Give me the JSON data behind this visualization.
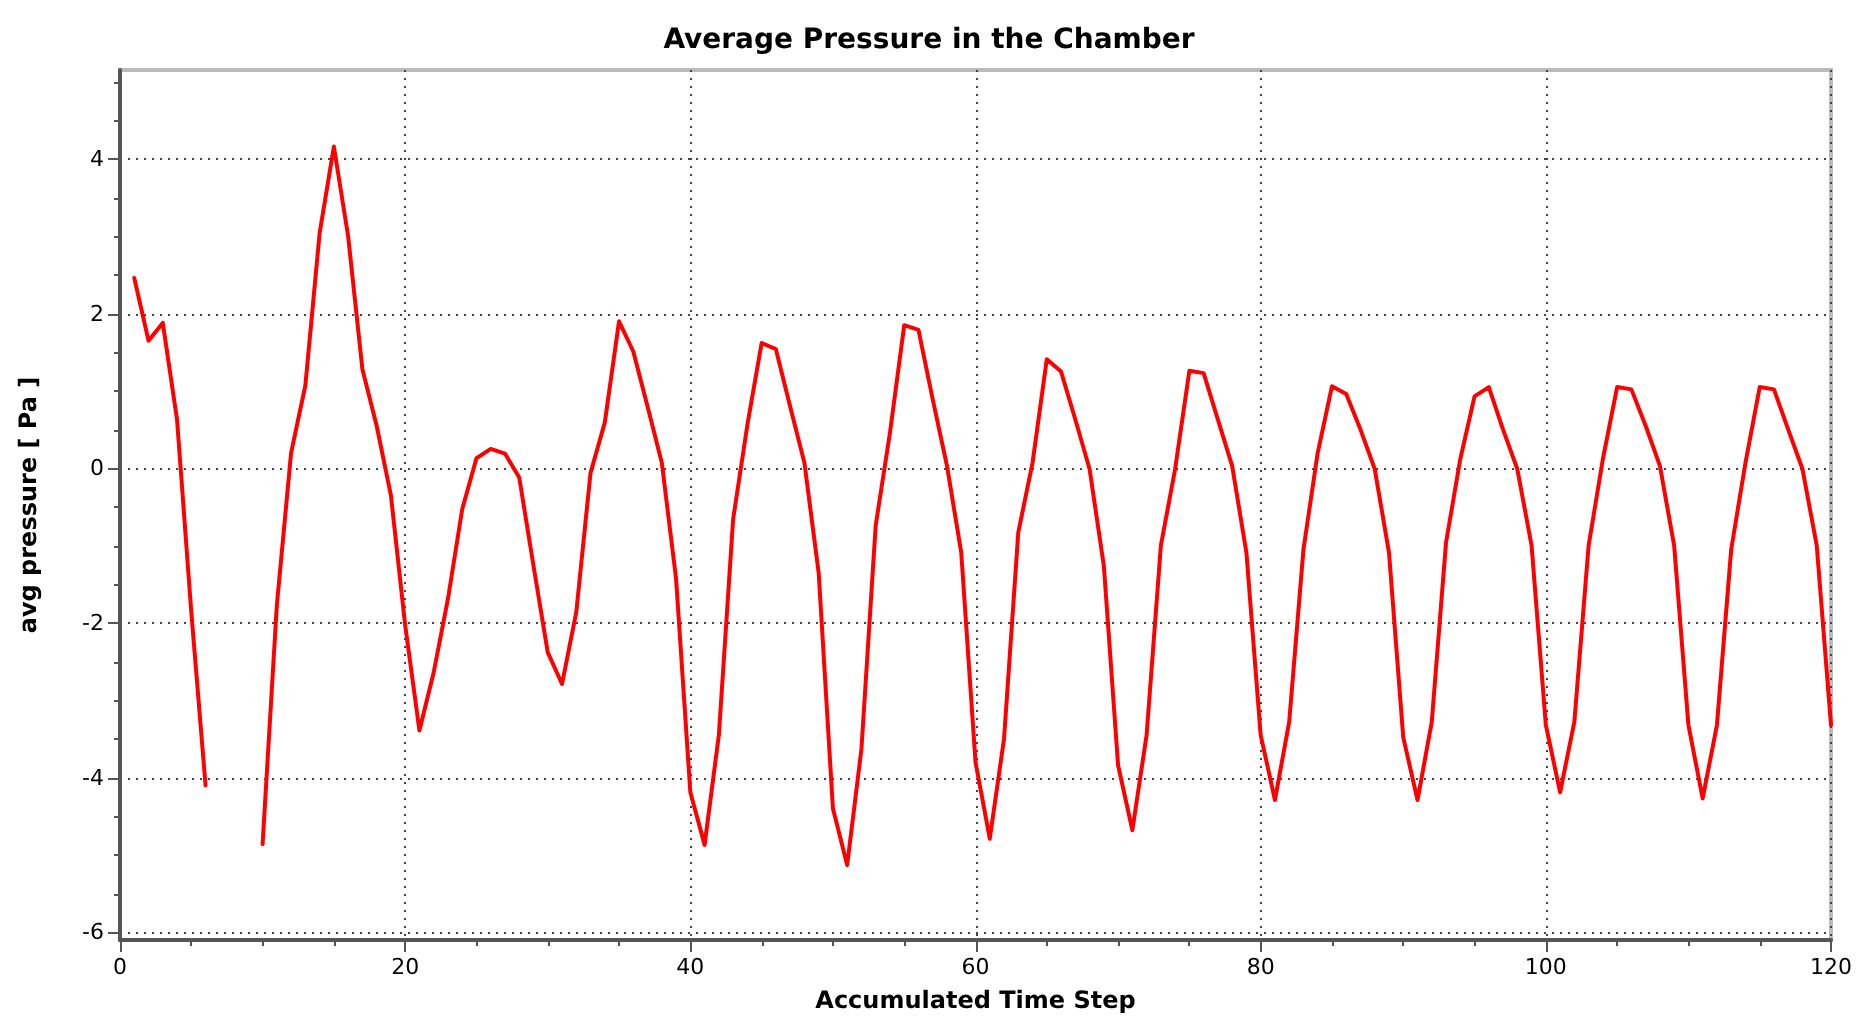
{
  "chart_data": {
    "type": "line",
    "title": "Average Pressure in the Chamber",
    "xlabel": "Accumulated Time Step",
    "ylabel": "avg pressure [ Pa ]",
    "x": [
      1,
      2,
      3,
      4,
      5,
      6,
      7,
      8,
      9,
      10,
      11,
      12,
      13,
      14,
      15,
      16,
      17,
      18,
      19,
      20,
      21,
      22,
      23,
      24,
      25,
      26,
      27,
      28,
      29,
      30,
      31,
      32,
      33,
      34,
      35,
      36,
      37,
      38,
      39,
      40,
      41,
      42,
      43,
      44,
      45,
      46,
      47,
      48,
      49,
      50,
      51,
      52,
      53,
      54,
      55,
      56,
      57,
      58,
      59,
      60,
      61,
      62,
      63,
      64,
      65,
      66,
      67,
      68,
      69,
      70,
      71,
      72,
      73,
      74,
      75,
      76,
      77,
      78,
      79,
      80,
      81,
      82,
      83,
      84,
      85,
      86,
      87,
      88,
      89,
      90,
      91,
      92,
      93,
      94,
      95,
      96,
      97,
      98,
      99,
      100,
      101,
      102,
      103,
      104,
      105,
      106,
      107,
      108,
      109,
      110,
      111,
      112,
      113,
      114,
      115,
      116,
      117,
      118,
      119,
      120
    ],
    "series": [
      {
        "color": "#ff0000",
        "values": [
          2.46,
          1.65,
          1.88,
          0.63,
          -1.86,
          -4.1,
          null,
          null,
          null,
          -4.86,
          -1.77,
          0.2,
          1.07,
          3.04,
          4.16,
          3.0,
          1.28,
          0.55,
          -0.35,
          -2.03,
          -3.39,
          -2.64,
          -1.69,
          -0.53,
          0.13,
          0.25,
          0.19,
          -0.12,
          -1.26,
          -2.38,
          -2.79,
          -1.86,
          -0.06,
          0.59,
          1.9,
          1.51,
          0.8,
          0.07,
          -1.43,
          -4.19,
          -4.87,
          -3.45,
          -0.66,
          0.56,
          1.62,
          1.54,
          0.8,
          0.07,
          -1.35,
          -4.4,
          -5.13,
          -3.63,
          -0.74,
          0.46,
          1.85,
          1.79,
          0.89,
          0.03,
          -1.09,
          -3.8,
          -4.79,
          -3.5,
          -0.83,
          0.07,
          1.41,
          1.25,
          0.63,
          -0.01,
          -1.26,
          -3.84,
          -4.68,
          -3.45,
          -1.0,
          -0.01,
          1.26,
          1.23,
          0.63,
          0.03,
          -1.09,
          -3.45,
          -4.29,
          -3.28,
          -1.05,
          0.2,
          1.06,
          0.96,
          0.5,
          -0.01,
          -1.09,
          -3.48,
          -4.29,
          -3.28,
          -0.96,
          0.12,
          0.93,
          1.05,
          0.5,
          -0.01,
          -1.0,
          -3.32,
          -4.19,
          -3.28,
          -1.0,
          0.12,
          1.05,
          1.02,
          0.55,
          0.03,
          -1.0,
          -3.32,
          -4.27,
          -3.32,
          -1.05,
          0.07,
          1.05,
          1.02,
          0.5,
          -0.01,
          -1.0,
          -3.32
        ]
      }
    ],
    "xlim": [
      0,
      120
    ],
    "xticks": [
      0,
      20,
      40,
      60,
      80,
      100,
      120
    ],
    "ylim": [
      -6.1,
      5.15
    ],
    "yticks": [
      -6,
      -4,
      -2,
      0,
      2,
      4
    ],
    "grid": true,
    "marker": "none",
    "line_style": "solid"
  }
}
